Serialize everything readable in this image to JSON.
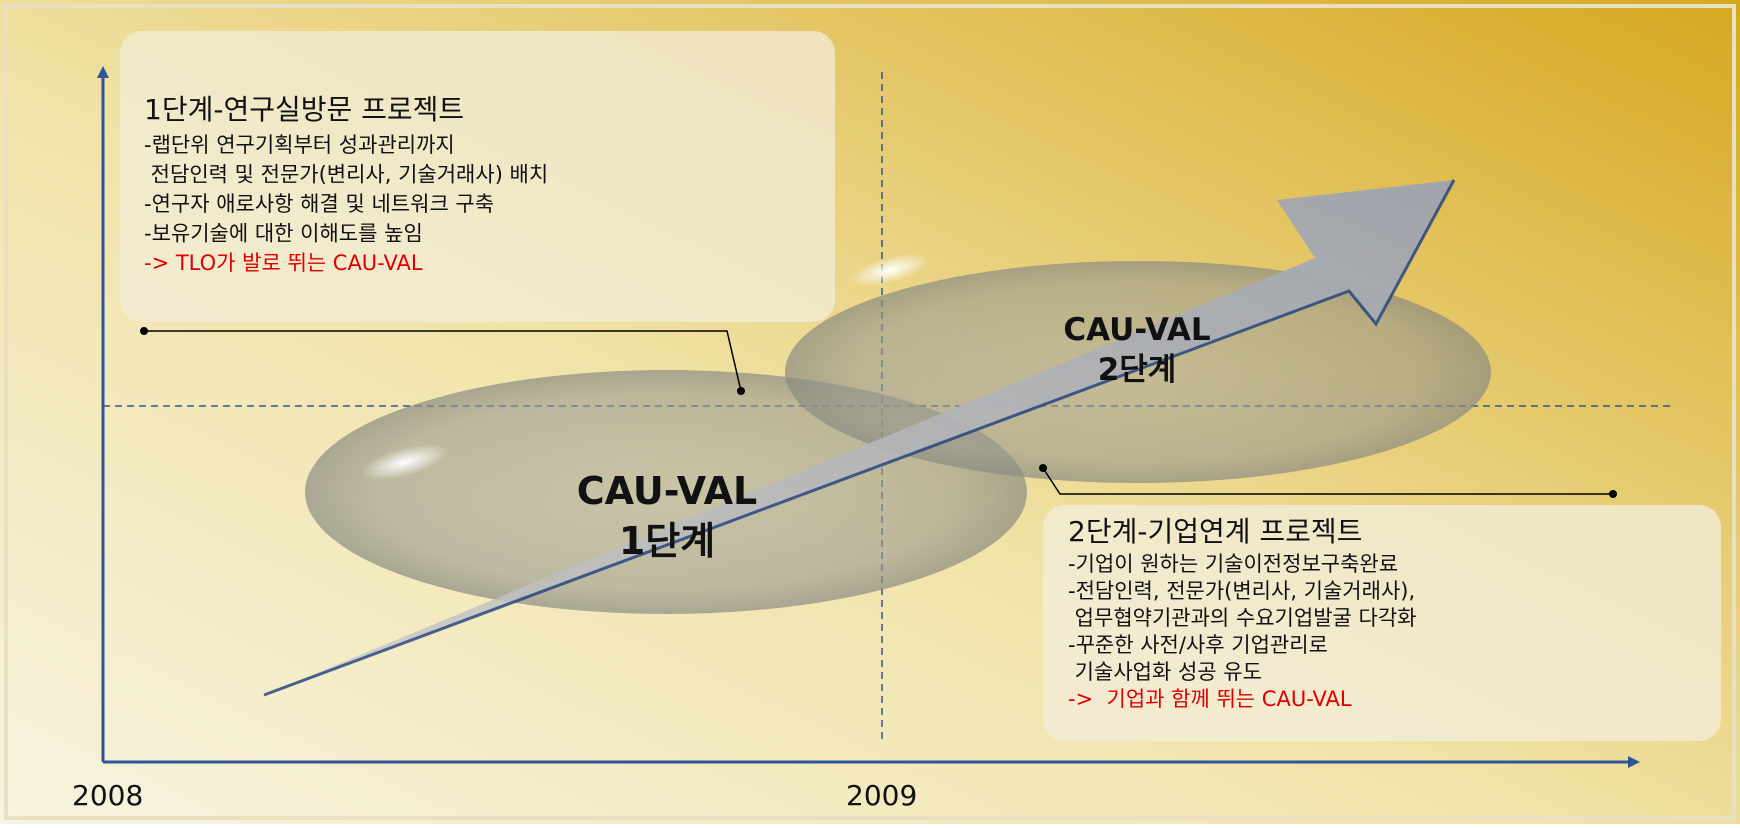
{
  "axis_labels": [
    "2008",
    "2009"
  ],
  "stage1": {
    "title": "1단계-연구실방문 프로젝트",
    "lines": [
      "-랩단위 연구기획부터 성과관리까지",
      " 전담인력 및 전문가(변리사, 기술거래사) 배치",
      "-연구자 애로사항 해결 및 네트워크 구축",
      "-보유기술에 대한 이해도를 높임"
    ],
    "highlight": "-> TLO가 발로 뛰는 CAU-VAL"
  },
  "stage2": {
    "title": "2단계-기업연계 프로젝트",
    "lines": [
      "-기업이 원하는 기술이전정보구축완료",
      "-전담인력, 전문가(변리사, 기술거래사),",
      " 업무협약기관과의 수요기업발굴 다각화",
      "-꾸준한 사전/사후 기업관리로",
      " 기술사업화 성공 유도"
    ],
    "highlight": "->  기업과 함께 뛰는 CAU-VAL"
  },
  "bubbles": [
    {
      "name": "CAU-VAL",
      "stage": "1단계"
    },
    {
      "name": "CAU-VAL",
      "stage": "2단계"
    }
  ]
}
